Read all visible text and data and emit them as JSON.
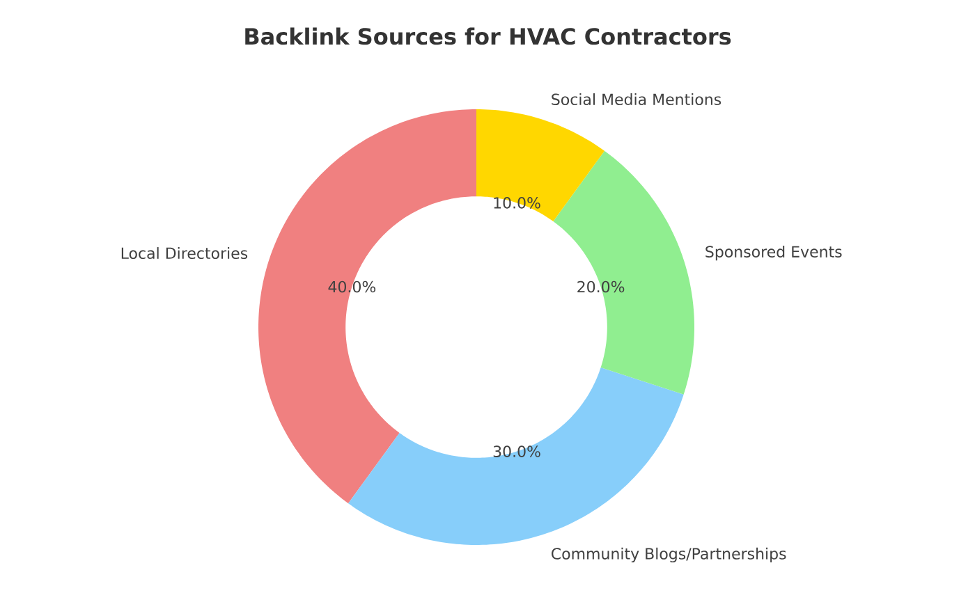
{
  "chart_data": {
    "type": "donut",
    "title": "Backlink Sources for HVAC Contractors",
    "categories": [
      "Local Directories",
      "Community Blogs/Partnerships",
      "Sponsored Events",
      "Social Media Mentions"
    ],
    "values": [
      40,
      30,
      20,
      10
    ],
    "colors": [
      "#f08080",
      "#87cefa",
      "#90ee90",
      "#ffd700"
    ],
    "value_labels": [
      "40.0%",
      "30.0%",
      "20.0%",
      "10.0%"
    ],
    "legend": false
  }
}
